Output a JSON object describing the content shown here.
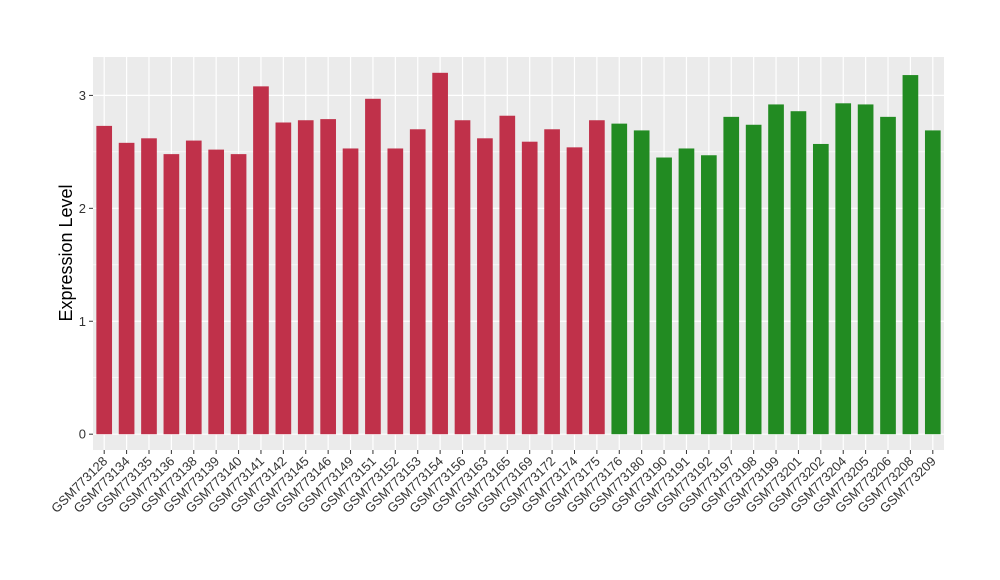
{
  "chart_data": {
    "type": "bar",
    "xlabel": "",
    "ylabel": "Expression Level",
    "ylim": [
      -0.14,
      3.34
    ],
    "yticks": [
      0,
      1,
      2,
      3
    ],
    "grid": true,
    "background": "#ebebeb",
    "colors": {
      "group1": "#c0314a",
      "group2": "#228b22"
    },
    "categories": [
      "GSM773128",
      "GSM773134",
      "GSM773135",
      "GSM773136",
      "GSM773138",
      "GSM773139",
      "GSM773140",
      "GSM773141",
      "GSM773142",
      "GSM773145",
      "GSM773146",
      "GSM773149",
      "GSM773151",
      "GSM773152",
      "GSM773153",
      "GSM773154",
      "GSM773156",
      "GSM773163",
      "GSM773165",
      "GSM773169",
      "GSM773172",
      "GSM773174",
      "GSM773175",
      "GSM773176",
      "GSM773180",
      "GSM773190",
      "GSM773191",
      "GSM773192",
      "GSM773197",
      "GSM773198",
      "GSM773199",
      "GSM773201",
      "GSM773202",
      "GSM773204",
      "GSM773205",
      "GSM773206",
      "GSM773208",
      "GSM773209"
    ],
    "values": [
      2.73,
      2.58,
      2.62,
      2.48,
      2.6,
      2.52,
      2.48,
      3.08,
      2.76,
      2.78,
      2.79,
      2.53,
      2.97,
      2.53,
      2.7,
      3.2,
      2.78,
      2.62,
      2.82,
      2.59,
      2.7,
      2.54,
      2.78,
      2.75,
      2.69,
      2.45,
      2.53,
      2.47,
      2.81,
      2.74,
      2.92,
      2.86,
      2.57,
      2.93,
      2.92,
      2.81,
      3.18,
      2.69
    ],
    "groups": [
      "group1",
      "group1",
      "group1",
      "group1",
      "group1",
      "group1",
      "group1",
      "group1",
      "group1",
      "group1",
      "group1",
      "group1",
      "group1",
      "group1",
      "group1",
      "group1",
      "group1",
      "group1",
      "group1",
      "group1",
      "group1",
      "group1",
      "group1",
      "group2",
      "group2",
      "group2",
      "group2",
      "group2",
      "group2",
      "group2",
      "group2",
      "group2",
      "group2",
      "group2",
      "group2",
      "group2",
      "group2",
      "group2"
    ]
  }
}
